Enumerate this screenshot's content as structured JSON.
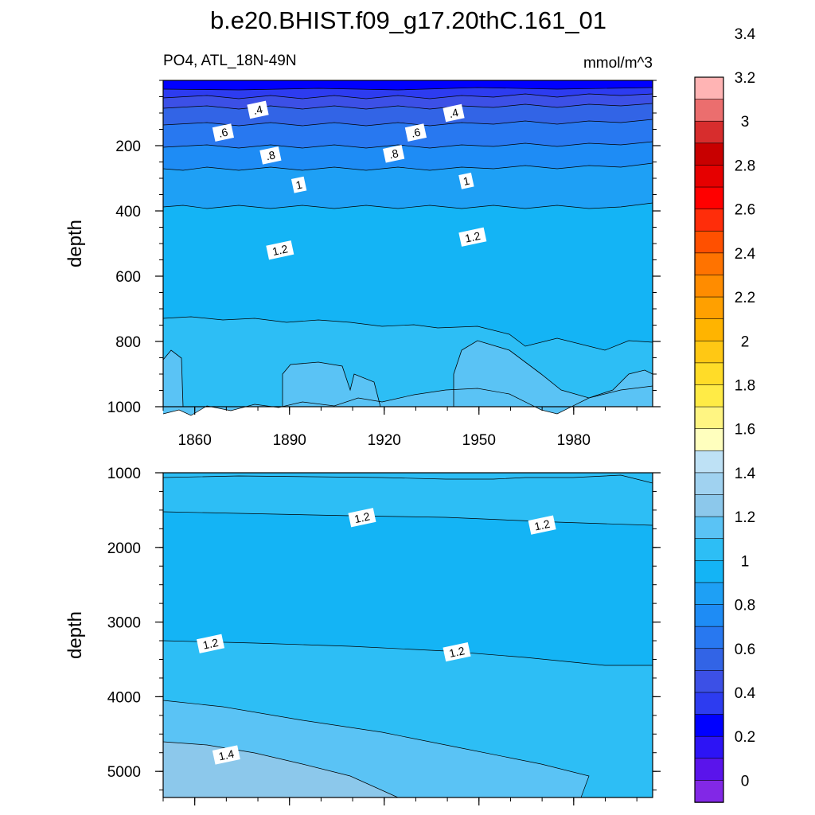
{
  "chart_data": {
    "type": "contour",
    "title": "b.e20.BHIST.f09_g17.20thC.161_01",
    "variable_label": "PO4, ATL_18N-49N",
    "units": "mmol/m^3",
    "xlabel": "",
    "ylabel": "depth",
    "x_ticks": [
      "1860",
      "1890",
      "1920",
      "1950",
      "1980"
    ],
    "upper_panel": {
      "ylabel": "depth",
      "y_ticks": [
        "200",
        "400",
        "600",
        "800",
        "1000"
      ],
      "contour_labels": [
        {
          "text": ".4",
          "year": 1880,
          "depth": 90
        },
        {
          "text": ".4",
          "year": 1942,
          "depth": 100
        },
        {
          "text": ".6",
          "year": 1869,
          "depth": 160
        },
        {
          "text": ".6",
          "year": 1930,
          "depth": 160
        },
        {
          "text": ".8",
          "year": 1884,
          "depth": 230
        },
        {
          "text": ".8",
          "year": 1923,
          "depth": 225
        },
        {
          "text": "1",
          "year": 1893,
          "depth": 320
        },
        {
          "text": "1",
          "year": 1946,
          "depth": 308
        },
        {
          "text": "1.2",
          "year": 1887,
          "depth": 520
        },
        {
          "text": "1.2",
          "year": 1948,
          "depth": 480
        }
      ]
    },
    "lower_panel": {
      "ylabel": "depth",
      "y_ticks": [
        "1000",
        "2000",
        "3000",
        "4000",
        "5000"
      ],
      "contour_labels": [
        {
          "text": "1.2",
          "year": 1913,
          "depth": 1600
        },
        {
          "text": "1.2",
          "year": 1970,
          "depth": 1700
        },
        {
          "text": "1.2",
          "year": 1865,
          "depth": 3290
        },
        {
          "text": "1.2",
          "year": 1943,
          "depth": 3400
        },
        {
          "text": "1.4",
          "year": 1870,
          "depth": 4780
        }
      ]
    },
    "colorbar": {
      "labels": [
        "0",
        "0.2",
        "0.4",
        "0.6",
        "0.8",
        "1",
        "1.2",
        "1.4",
        "1.6",
        "1.8",
        "2",
        "2.2",
        "2.4",
        "2.6",
        "2.8",
        "3",
        "3.2",
        "3.4"
      ],
      "colors": [
        "#ffb4b4",
        "#eb6e6e",
        "#d72d2d",
        "#c80000",
        "#e60000",
        "#ff0000",
        "#ff2d0a",
        "#ff5000",
        "#ff7300",
        "#ff8c00",
        "#ffa000",
        "#ffb400",
        "#ffc814",
        "#ffdc28",
        "#ffeb46",
        "#fff582",
        "#ffffbe",
        "#bee1f5",
        "#a0d2f0",
        "#8cc8eb",
        "#5ac3f5",
        "#2dbef5",
        "#14b4f5",
        "#1ea0f5",
        "#1e8cf5",
        "#2878f0",
        "#3264e6",
        "#3c50e6",
        "#2d3cf0",
        "#0000ff",
        "#2d14f5",
        "#5a14eb",
        "#8228e6"
      ]
    }
  }
}
